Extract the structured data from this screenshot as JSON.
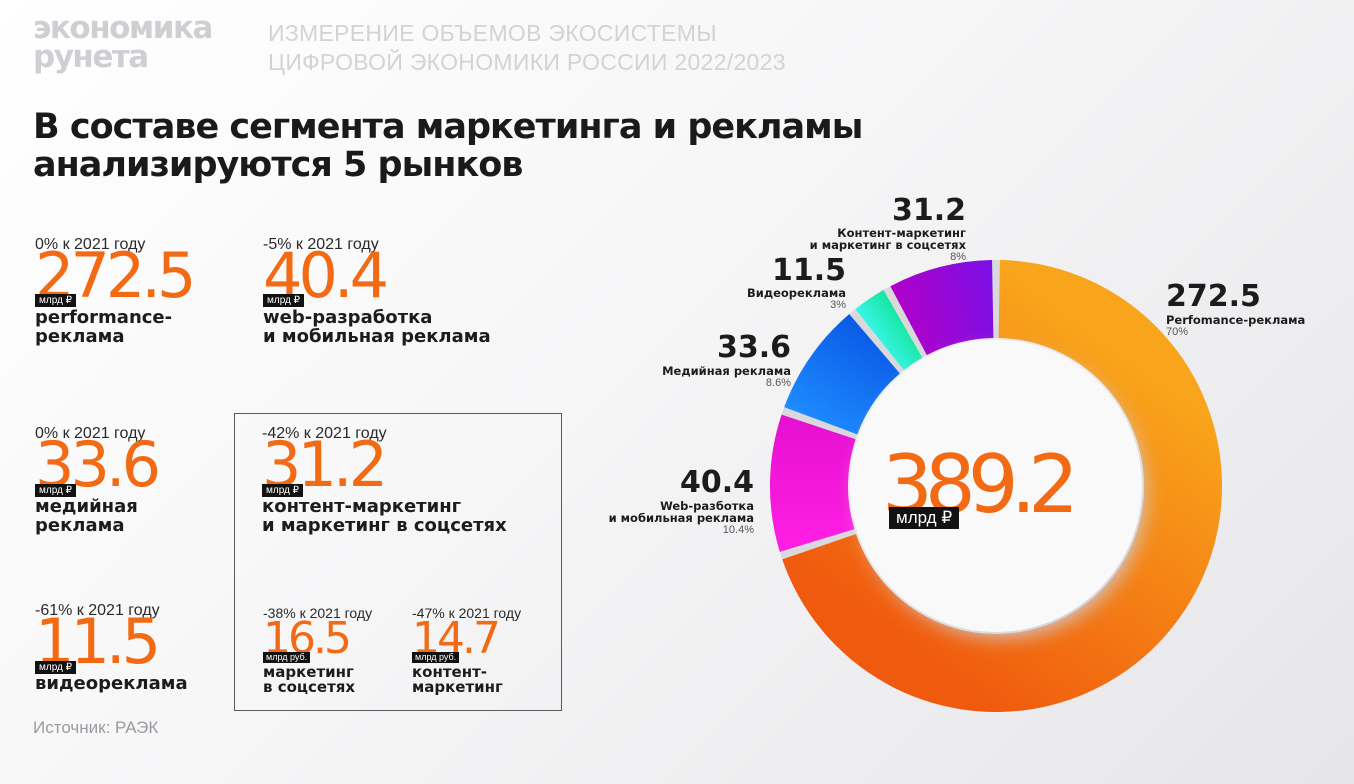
{
  "header": {
    "logo_line1": "экономика",
    "logo_line2": "рунета",
    "subtitle_line1": "ИЗМЕРЕНИЕ ОБЪЕМОВ ЭКОСИСТЕМЫ",
    "subtitle_line2": "ЦИФРОВОЙ ЭКОНОМИКИ РОССИИ 2022/2023"
  },
  "title_line1": "В составе сегмента маркетинга и рекламы",
  "title_line2": "анализируются 5 рынков",
  "stats": {
    "performance": {
      "change": "0% к 2021 году",
      "value": "272.5",
      "unit": "млрд ₽",
      "label1": "performance-",
      "label2": "реклама"
    },
    "web": {
      "change": "-5% к 2021 году",
      "value": "40.4",
      "unit": "млрд ₽",
      "label1": "web-разработка",
      "label2": "и мобильная реклама"
    },
    "media": {
      "change": "0% к 2021 году",
      "value": "33.6",
      "unit": "млрд ₽",
      "label1": "медийная",
      "label2": "реклама"
    },
    "content": {
      "change": "-42% к 2021 году",
      "value": "31.2",
      "unit": "млрд ₽",
      "label1": "контент-маркетинг",
      "label2": "и маркетинг в соцсетях"
    },
    "video": {
      "change": "-61% к 2021 году",
      "value": "11.5",
      "unit": "млрд ₽",
      "label1": "видеореклама"
    },
    "social": {
      "change": "-38% к 2021 году",
      "value": "16.5",
      "unit": "млрд руб.",
      "label1": "маркетинг",
      "label2": "в соцсетях"
    },
    "contentonly": {
      "change": "-47% к 2021 году",
      "value": "14.7",
      "unit": "млрд руб.",
      "label1": "контент-",
      "label2": "маркетинг"
    }
  },
  "source": "Источник: РАЭК",
  "chart_data": {
    "type": "pie",
    "donut": true,
    "total_value": "389.2",
    "total_unit": "млрд ₽",
    "slices": [
      {
        "value": 272.5,
        "name1": "Perfomance-реклама",
        "name2": "",
        "percent": "70%",
        "colors": [
          "#f9a51b",
          "#f05a0e"
        ]
      },
      {
        "value": 40.4,
        "name1": "Web-разботка",
        "name2": "и мобильная реклама",
        "percent": "10.4%",
        "colors": [
          "#ff1fe3",
          "#e60fd1"
        ]
      },
      {
        "value": 33.6,
        "name1": "Медийная реклама",
        "name2": "",
        "percent": "8.6%",
        "colors": [
          "#1e8cff",
          "#0a5ae6"
        ]
      },
      {
        "value": 11.5,
        "name1": "Видеореклама",
        "name2": "",
        "percent": "3%",
        "colors": [
          "#39f5e8",
          "#16e6a0"
        ]
      },
      {
        "value": 31.2,
        "name1": "Контент-маркетинг",
        "name2": "и маркетинг в соцсетях",
        "percent": "8%",
        "colors": [
          "#b000c8",
          "#7a10e6"
        ]
      }
    ]
  }
}
